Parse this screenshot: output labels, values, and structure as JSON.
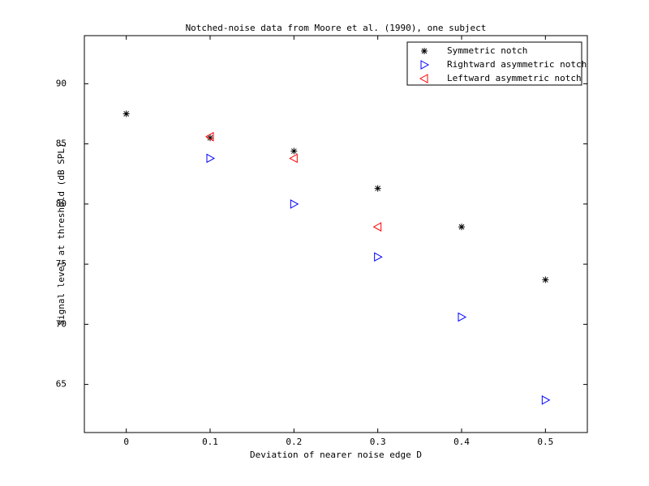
{
  "chart_data": {
    "type": "scatter",
    "title": "Notched-noise data from Moore et al. (1990), one subject",
    "xlabel": "Deviation of nearer noise edge D",
    "ylabel": "Signal level at threshold (dB SPL)",
    "xlim": [
      -0.05,
      0.55
    ],
    "xticks": [
      0,
      0.1,
      0.2,
      0.3,
      0.4,
      0.5
    ],
    "ylim": [
      61,
      94
    ],
    "yticks": [
      65,
      70,
      75,
      80,
      85,
      90
    ],
    "grid": false,
    "legend": "northeast",
    "series": [
      {
        "name": "Symmetric notch",
        "color": "#000000",
        "marker": "*",
        "x": [
          0,
          0.1,
          0.2,
          0.3,
          0.4,
          0.5
        ],
        "values": [
          87.5,
          85.5,
          84.4,
          81.3,
          78.1,
          73.7
        ]
      },
      {
        "name": "Rightward asymmetric notch",
        "color": "#0000ff",
        "marker": ">",
        "x": [
          0.1,
          0.2,
          0.3,
          0.4,
          0.5
        ],
        "values": [
          83.8,
          80.0,
          75.6,
          70.6,
          63.7
        ]
      },
      {
        "name": "Leftward asymmetric notch",
        "color": "#ff0000",
        "marker": "<",
        "x": [
          0.1,
          0.2,
          0.3
        ],
        "values": [
          85.6,
          83.8,
          78.1
        ]
      }
    ]
  }
}
